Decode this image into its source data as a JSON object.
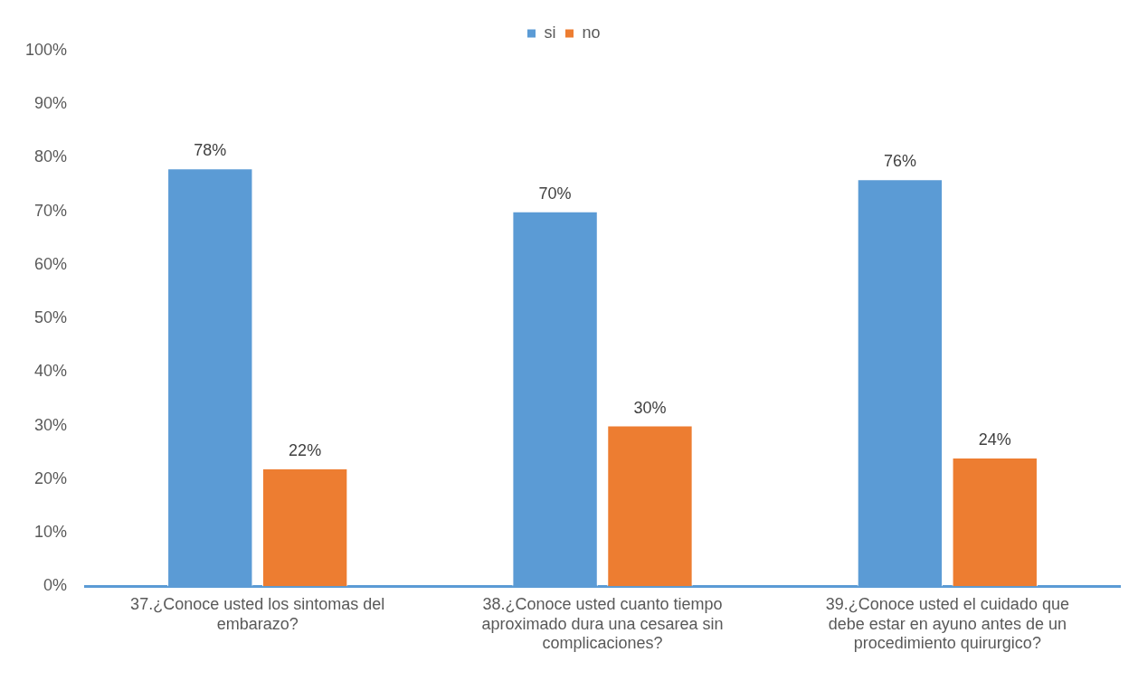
{
  "chart_data": {
    "type": "bar",
    "categories": [
      "37.¿Conoce usted los sintomas del embarazo?",
      "38.¿Conoce usted cuanto tiempo aproximado dura una cesarea sin complicaciones?",
      "39.¿Conoce usted el cuidado que debe estar en ayuno antes de un procedimiento quirurgico?"
    ],
    "series": [
      {
        "name": "si",
        "color": "#5b9bd5",
        "values": [
          78,
          70,
          76
        ],
        "value_labels": [
          "78%",
          "70%",
          "76%"
        ]
      },
      {
        "name": "no",
        "color": "#ed7d31",
        "values": [
          22,
          30,
          24
        ],
        "value_labels": [
          "22%",
          "30%",
          "24%"
        ]
      }
    ],
    "ylim": [
      0,
      100
    ],
    "yticks": [
      {
        "value": 0,
        "label": "0%"
      },
      {
        "value": 10,
        "label": "10%"
      },
      {
        "value": 20,
        "label": "20%"
      },
      {
        "value": 30,
        "label": "30%"
      },
      {
        "value": 40,
        "label": "40%"
      },
      {
        "value": 50,
        "label": "50%"
      },
      {
        "value": 60,
        "label": "60%"
      },
      {
        "value": 70,
        "label": "70%"
      },
      {
        "value": 80,
        "label": "80%"
      },
      {
        "value": 90,
        "label": "90%"
      },
      {
        "value": 100,
        "label": "100%"
      }
    ],
    "grid": false,
    "legend": "top"
  }
}
